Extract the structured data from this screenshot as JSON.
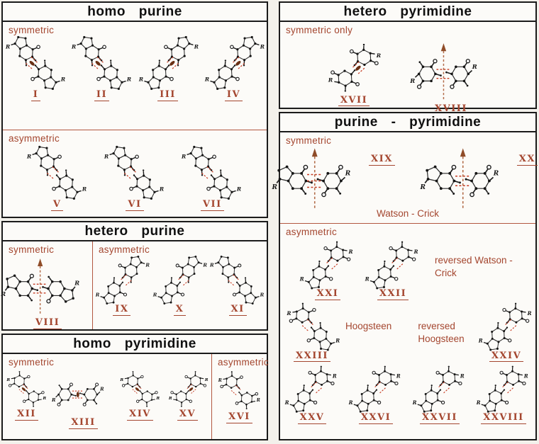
{
  "figure": {
    "accent": "#a4462f",
    "bond_color": "#c63b22",
    "ellipse_color": "#6b3014",
    "arrow_color": "#b26b48",
    "border_color": "#1b1b1b",
    "r_label": "R",
    "panels": {
      "homo_purine": {
        "title": "homo purine",
        "symmetric_label": "symmetric",
        "asymmetric_label": "asymmetric",
        "symmetric_pairs": [
          {
            "numeral": "I",
            "top": "purine",
            "bottom": "purine",
            "marker": "ellipse",
            "layout": "diag",
            "dir": 1
          },
          {
            "numeral": "II",
            "top": "purine",
            "bottom": "purine",
            "marker": "ellipse",
            "layout": "diag",
            "dir": 1
          },
          {
            "numeral": "III",
            "top": "purine",
            "bottom": "purine",
            "marker": "ellipse",
            "layout": "diag",
            "dir": -1
          },
          {
            "numeral": "IV",
            "top": "purine",
            "bottom": "purine",
            "marker": "ellipse",
            "layout": "diag",
            "dir": -1
          }
        ],
        "asymmetric_pairs": [
          {
            "numeral": "V",
            "top": "purine",
            "bottom": "purine",
            "marker": "none",
            "layout": "diag",
            "dir": 1
          },
          {
            "numeral": "VI",
            "top": "purine",
            "bottom": "purine",
            "marker": "none",
            "layout": "diag",
            "dir": 1
          },
          {
            "numeral": "VII",
            "top": "purine",
            "bottom": "purine",
            "marker": "none",
            "layout": "diag",
            "dir": 1
          }
        ]
      },
      "hetero_purine": {
        "title": "hetero purine",
        "symmetric_label": "symmetric",
        "asymmetric_label": "asymmetric",
        "symmetric_pairs": [
          {
            "numeral": "VIII",
            "top": "purine",
            "bottom": "purine",
            "marker": "arrow",
            "layout": "horiz",
            "dir": 1,
            "bonds": 2
          }
        ],
        "asymmetric_pairs": [
          {
            "numeral": "IX",
            "top": "purine",
            "bottom": "purine",
            "marker": "none",
            "layout": "diag",
            "dir": -1
          },
          {
            "numeral": "X",
            "top": "purine",
            "bottom": "purine",
            "marker": "none",
            "layout": "diag",
            "dir": -1
          },
          {
            "numeral": "XI",
            "top": "purine",
            "bottom": "purine",
            "marker": "none",
            "layout": "diag",
            "dir": 1
          }
        ]
      },
      "homo_pyrimidine": {
        "title": "homo pyrimidine",
        "symmetric_label": "symmetric",
        "asymmetric_label": "asymmetric",
        "symmetric_pairs": [
          {
            "numeral": "XII",
            "top": "pyrimidine",
            "bottom": "pyrimidine",
            "marker": "ellipse",
            "layout": "diag",
            "dir": 1
          },
          {
            "numeral": "XIII",
            "top": "pyrimidine",
            "bottom": "pyrimidine",
            "marker": "ellipse",
            "layout": "horiz",
            "dir": 1,
            "bonds": 2
          },
          {
            "numeral": "XIV",
            "top": "pyrimidine",
            "bottom": "pyrimidine",
            "marker": "ellipse",
            "layout": "diag",
            "dir": 1
          },
          {
            "numeral": "XV",
            "top": "pyrimidine",
            "bottom": "pyrimidine",
            "marker": "ellipse",
            "layout": "diag",
            "dir": -1
          }
        ],
        "asymmetric_pairs": [
          {
            "numeral": "XVI",
            "top": "pyrimidine",
            "bottom": "pyrimidine",
            "marker": "none",
            "layout": "diag",
            "dir": 1
          }
        ]
      },
      "hetero_pyrimidine": {
        "title": "hetero pyrimidine",
        "label": "symmetric only",
        "pairs": [
          {
            "numeral": "XVII",
            "top": "pyrimidine",
            "bottom": "pyrimidine",
            "marker": "ellipse",
            "layout": "diag",
            "dir": -1
          },
          {
            "numeral": "XVIII",
            "top": "pyrimidine",
            "bottom": "pyrimidine",
            "marker": "arrow",
            "layout": "horiz",
            "dir": 1,
            "bonds": 2
          }
        ]
      },
      "purine_pyrimidine": {
        "title": "purine - pyrimidine",
        "symmetric_label": "symmetric",
        "asymmetric_label": "asymmetric",
        "watson_crick_label": "Watson - Crick",
        "symmetric_pairs": [
          {
            "numeral": "XIX",
            "top": "purine",
            "bottom": "pyrimidine",
            "marker": "arrow",
            "layout": "horiz",
            "dir": 1,
            "bonds": 3
          },
          {
            "numeral": "XX",
            "top": "purine",
            "bottom": "pyrimidine",
            "marker": "arrow",
            "layout": "horiz",
            "dir": 1,
            "bonds": 2
          }
        ],
        "reversed_watson_crick_label": "reversed Watson - Crick",
        "reversed_wc_pairs": [
          {
            "numeral": "XXI",
            "top": "pyrimidine",
            "bottom": "purine",
            "marker": "none",
            "layout": "diag",
            "dir": -1
          },
          {
            "numeral": "XXII",
            "top": "pyrimidine",
            "bottom": "purine",
            "marker": "none",
            "layout": "diag",
            "dir": -1
          }
        ],
        "hoogsteen_label": "Hoogsteen",
        "hoogsteen_pairs": [
          {
            "numeral": "XXIII",
            "top": "pyrimidine",
            "bottom": "purine",
            "marker": "none",
            "layout": "diag",
            "dir": 1
          }
        ],
        "reversed_hoogsteen_label": "reversed Hoogsteen",
        "reversed_hoogsteen_pairs": [
          {
            "numeral": "XXIV",
            "top": "pyrimidine",
            "bottom": "purine",
            "marker": "none",
            "layout": "diag",
            "dir": -1
          }
        ],
        "bottom_pairs": [
          {
            "numeral": "XXV",
            "top": "pyrimidine",
            "bottom": "purine",
            "marker": "none",
            "layout": "diag",
            "dir": -1
          },
          {
            "numeral": "XXVI",
            "top": "pyrimidine",
            "bottom": "purine",
            "marker": "none",
            "layout": "diag",
            "dir": -1
          },
          {
            "numeral": "XXVII",
            "top": "pyrimidine",
            "bottom": "purine",
            "marker": "none",
            "layout": "diag",
            "dir": -1
          },
          {
            "numeral": "XXVIII",
            "top": "pyrimidine",
            "bottom": "purine",
            "marker": "none",
            "layout": "diag",
            "dir": -1
          }
        ]
      }
    }
  }
}
